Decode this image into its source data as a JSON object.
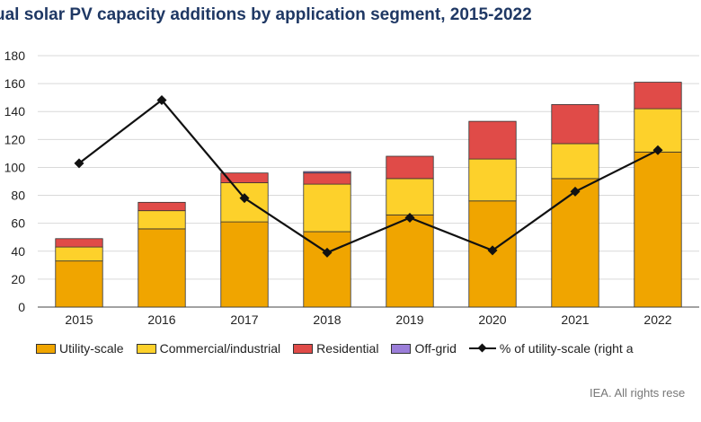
{
  "title": "ual solar PV capacity additions by application segment, 2015-2022",
  "source": "IEA. All rights rese",
  "chart_data": {
    "type": "bar",
    "stacked": true,
    "title": "ual solar PV capacity additions by application segment, 2015-2022",
    "categories": [
      "2015",
      "2016",
      "2017",
      "2018",
      "2019",
      "2020",
      "2021",
      "2022"
    ],
    "ylim": [
      0,
      180
    ],
    "yticks": [
      "0",
      "20",
      "40",
      "60",
      "80",
      "100",
      "120",
      "140",
      "160",
      "180"
    ],
    "grid": true,
    "legend": "bottom",
    "series": [
      {
        "name": "Utility-scale",
        "color": "#f0a500",
        "values": [
          33,
          56,
          61,
          54,
          66,
          76,
          92,
          111
        ]
      },
      {
        "name": "Commercial/industrial",
        "color": "#fdd12b",
        "values": [
          10,
          13,
          28,
          34,
          26,
          30,
          25,
          31
        ]
      },
      {
        "name": "Residential",
        "color": "#e04b48",
        "values": [
          6,
          6,
          7,
          8,
          16,
          27,
          28,
          19
        ]
      },
      {
        "name": "Off-grid",
        "color": "#9b7ed9",
        "values": [
          0,
          0,
          0,
          1,
          0,
          0,
          0,
          0
        ]
      }
    ],
    "line": {
      "name": "% of utility-scale (right a",
      "axis": "right",
      "color": "#111111",
      "values": [
        66,
        95,
        50,
        25,
        41,
        26,
        53,
        72
      ],
      "ylim": [
        0,
        115.4
      ]
    }
  }
}
